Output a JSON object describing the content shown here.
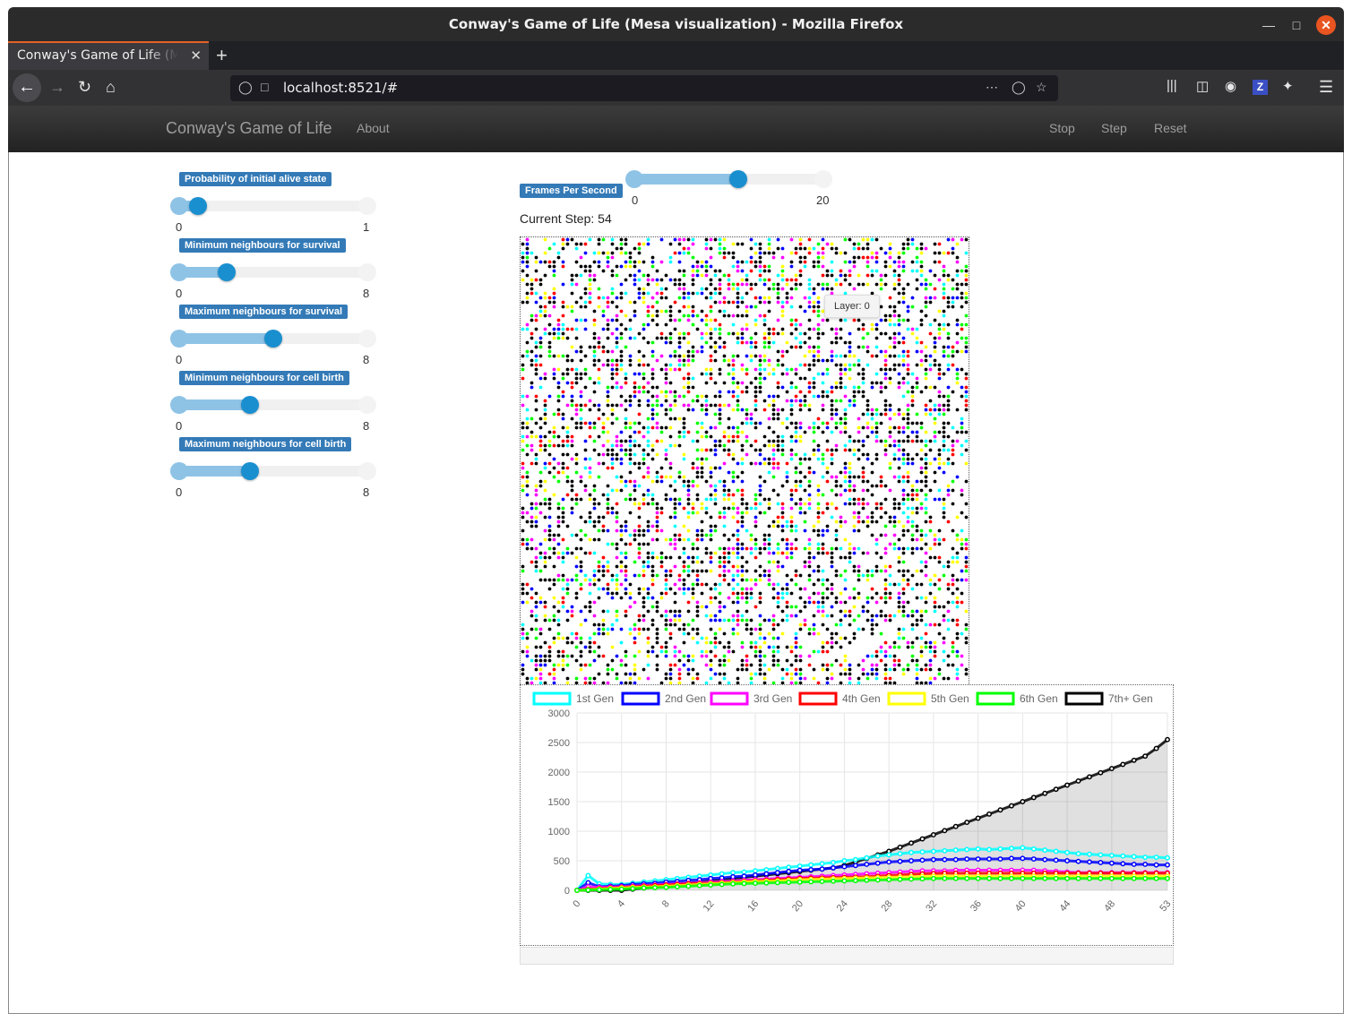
{
  "browser": {
    "window_title": "Conway's Game of Life (Mesa visualization) - Mozilla Firefox",
    "tab_title": "Conway's Game of Life (Mesa visualization)",
    "url": "localhost:8521/#"
  },
  "app": {
    "brand": "Conway's Game of Life",
    "about": "About",
    "stop": "Stop",
    "step": "Step",
    "reset": "Reset"
  },
  "params": [
    {
      "label": "Probability of initial alive state",
      "min": "0",
      "max": "1",
      "value": 0.1,
      "range": 1
    },
    {
      "label": "Minimum neighbours for survival",
      "min": "0",
      "max": "8",
      "value": 2,
      "range": 8
    },
    {
      "label": "Maximum neighbours for survival",
      "min": "0",
      "max": "8",
      "value": 4,
      "range": 8
    },
    {
      "label": "Minimum neighbours for cell birth",
      "min": "0",
      "max": "8",
      "value": 3,
      "range": 8
    },
    {
      "label": "Maximum neighbours for cell birth",
      "min": "0",
      "max": "8",
      "value": 3,
      "range": 8
    }
  ],
  "fps": {
    "label": "Frames Per Second",
    "min": "0",
    "max": "20",
    "value": 11
  },
  "current_step": "Current Step: 54",
  "tooltip": "Layer: 0",
  "palette": [
    "#000000",
    "#000000",
    "#000000",
    "#000000",
    "#00ffff",
    "#0000ff",
    "#ff00ff",
    "#ff0000",
    "#ffff00",
    "#00ff00"
  ],
  "chart_data": {
    "type": "line",
    "title": "",
    "xlabel": "",
    "ylabel": "",
    "ylim": [
      0,
      3000
    ],
    "yticks": [
      0,
      500,
      1000,
      1500,
      2000,
      2500,
      3000
    ],
    "xticks": [
      0,
      4,
      8,
      12,
      16,
      20,
      24,
      28,
      32,
      36,
      40,
      44,
      48,
      53
    ],
    "x_max": 53,
    "legend_position": "top",
    "series": [
      {
        "name": "1st Gen",
        "color": "#00ffff",
        "values": [
          0,
          250,
          110,
          100,
          100,
          120,
          140,
          160,
          180,
          200,
          220,
          240,
          260,
          280,
          300,
          310,
          330,
          350,
          370,
          390,
          410,
          430,
          450,
          470,
          500,
          520,
          550,
          580,
          600,
          620,
          640,
          650,
          660,
          670,
          680,
          690,
          700,
          690,
          700,
          710,
          720,
          700,
          680,
          660,
          640,
          620,
          610,
          600,
          590,
          580,
          570,
          560,
          560,
          550
        ]
      },
      {
        "name": "2nd Gen",
        "color": "#0000ff",
        "values": [
          0,
          130,
          60,
          70,
          80,
          100,
          110,
          120,
          140,
          150,
          170,
          180,
          200,
          210,
          230,
          240,
          260,
          280,
          300,
          320,
          340,
          350,
          360,
          380,
          400,
          420,
          440,
          460,
          480,
          490,
          500,
          510,
          520,
          520,
          520,
          530,
          530,
          530,
          530,
          540,
          540,
          530,
          520,
          510,
          500,
          490,
          480,
          470,
          460,
          450,
          440,
          440,
          430,
          430
        ]
      },
      {
        "name": "3rd Gen",
        "color": "#ff00ff",
        "values": [
          0,
          60,
          50,
          55,
          60,
          70,
          80,
          90,
          100,
          110,
          120,
          130,
          140,
          150,
          160,
          170,
          180,
          190,
          200,
          210,
          220,
          230,
          240,
          250,
          260,
          270,
          280,
          290,
          300,
          310,
          320,
          330,
          330,
          330,
          340,
          340,
          340,
          340,
          340,
          340,
          340,
          340,
          330,
          320,
          310,
          300,
          300,
          300,
          300,
          300,
          300,
          300,
          300,
          300
        ]
      },
      {
        "name": "4th Gen",
        "color": "#ff0000",
        "values": [
          0,
          20,
          30,
          40,
          50,
          60,
          70,
          80,
          90,
          100,
          110,
          115,
          120,
          130,
          140,
          150,
          160,
          170,
          180,
          190,
          200,
          205,
          210,
          215,
          220,
          225,
          230,
          240,
          250,
          260,
          270,
          280,
          285,
          290,
          290,
          290,
          290,
          290,
          290,
          290,
          290,
          290,
          290,
          290,
          290,
          290,
          290,
          290,
          290,
          290,
          290,
          290,
          290,
          290
        ]
      },
      {
        "name": "5th Gen",
        "color": "#ffff00",
        "values": [
          0,
          10,
          20,
          30,
          40,
          50,
          55,
          60,
          70,
          80,
          90,
          100,
          110,
          120,
          130,
          140,
          150,
          155,
          160,
          170,
          180,
          185,
          190,
          195,
          200,
          205,
          210,
          215,
          220,
          225,
          230,
          235,
          240,
          240,
          240,
          240,
          240,
          240,
          240,
          240,
          240,
          240,
          240,
          240,
          240,
          240,
          240,
          240,
          240,
          240,
          240,
          240,
          240,
          240
        ]
      },
      {
        "name": "6th Gen",
        "color": "#00ff00",
        "values": [
          0,
          5,
          10,
          15,
          20,
          30,
          40,
          45,
          50,
          60,
          70,
          80,
          90,
          100,
          110,
          115,
          120,
          125,
          130,
          135,
          140,
          145,
          150,
          155,
          160,
          165,
          170,
          175,
          180,
          185,
          190,
          195,
          200,
          200,
          200,
          200,
          200,
          200,
          200,
          200,
          200,
          200,
          200,
          200,
          200,
          200,
          200,
          200,
          200,
          200,
          200,
          200,
          200,
          200
        ]
      },
      {
        "name": "7th+ Gen",
        "color": "#000000",
        "values": [
          0,
          0,
          0,
          0,
          0,
          20,
          40,
          60,
          80,
          100,
          120,
          140,
          160,
          180,
          200,
          220,
          240,
          260,
          280,
          300,
          320,
          340,
          360,
          380,
          420,
          480,
          540,
          600,
          660,
          730,
          800,
          870,
          940,
          1010,
          1080,
          1150,
          1220,
          1290,
          1360,
          1430,
          1500,
          1570,
          1640,
          1710,
          1780,
          1850,
          1920,
          1990,
          2060,
          2130,
          2200,
          2270,
          2400,
          2550
        ]
      }
    ]
  }
}
